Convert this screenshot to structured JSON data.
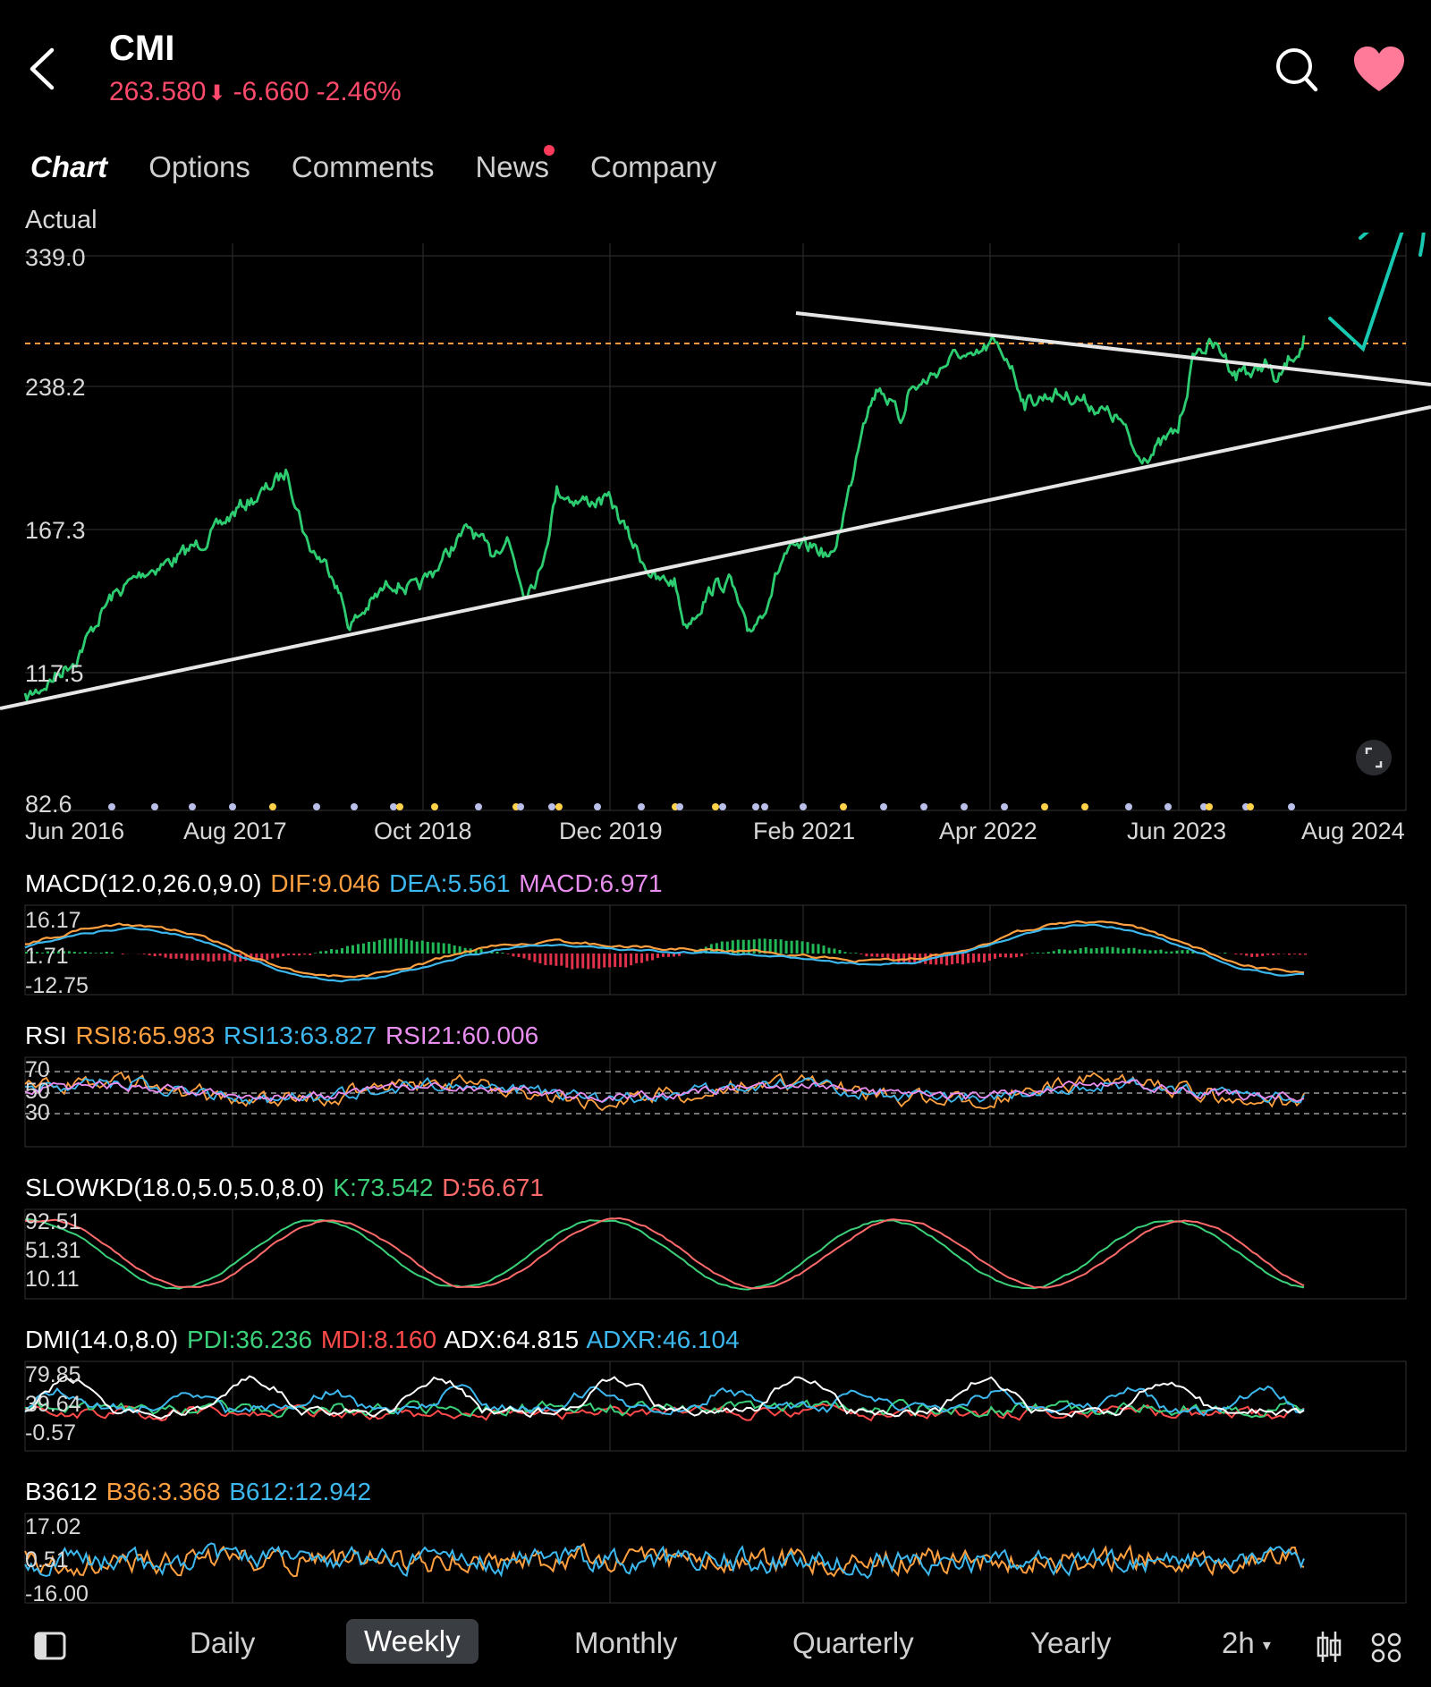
{
  "header": {
    "ticker": "CMI",
    "price": "263.580",
    "change": "-6.660",
    "change_pct": "-2.46%",
    "price_color": "#ff4a6b"
  },
  "tabs": [
    {
      "label": "Chart",
      "active": true
    },
    {
      "label": "Options"
    },
    {
      "label": "Comments"
    },
    {
      "label": "News",
      "badge": true
    },
    {
      "label": "Company"
    }
  ],
  "main_chart": {
    "mode_label": "Actual",
    "y_ticks": [
      "339.0",
      "238.2",
      "167.3",
      "117.5",
      "82.6"
    ],
    "x_ticks": [
      "Jun 2016",
      "Aug 2017",
      "Oct 2018",
      "Dec 2019",
      "Feb 2021",
      "Apr 2022",
      "Jun 2023",
      "Aug 2024"
    ],
    "line_color": "#2ecc71",
    "dashed_level": 263.58,
    "dashed_color": "#ff9a3c"
  },
  "macd": {
    "title": "MACD(12.0,26.0,9.0)",
    "dif": "DIF:9.046",
    "dea": "DEA:5.561",
    "macd": "MACD:6.971",
    "y_ticks": [
      "16.17",
      "1.71",
      "-12.75"
    ]
  },
  "rsi": {
    "title": "RSI",
    "rsi8": "RSI8:65.983",
    "rsi13": "RSI13:63.827",
    "rsi21": "RSI21:60.006",
    "levels": [
      "70",
      "50",
      "30"
    ]
  },
  "slowkd": {
    "title": "SLOWKD(18.0,5.0,5.0,8.0)",
    "k": "K:73.542",
    "d": "D:56.671",
    "y_ticks": [
      "92.51",
      "51.31",
      "10.11"
    ]
  },
  "dmi": {
    "title": "DMI(14.0,8.0)",
    "pdi": "PDI:36.236",
    "mdi": "MDI:8.160",
    "adx": "ADX:64.815",
    "adxr": "ADXR:46.104",
    "y_ticks": [
      "79.85",
      "39.64",
      "-0.57"
    ]
  },
  "b3612": {
    "title": "B3612",
    "b36": "B36:3.368",
    "b612": "B612:12.942",
    "y_ticks": [
      "17.02",
      "0.51",
      "-16.00"
    ]
  },
  "bottom_bar": {
    "periods": [
      "Daily",
      "Weekly",
      "Monthly",
      "Quarterly",
      "Yearly"
    ],
    "active": "Weekly",
    "interval": "2h"
  },
  "colors": {
    "orange": "#ffa040",
    "blue": "#3cb8ef",
    "pink": "#e98ef0",
    "green": "#3bd07a",
    "red": "#ff4a4a",
    "white": "#ffffff"
  }
}
